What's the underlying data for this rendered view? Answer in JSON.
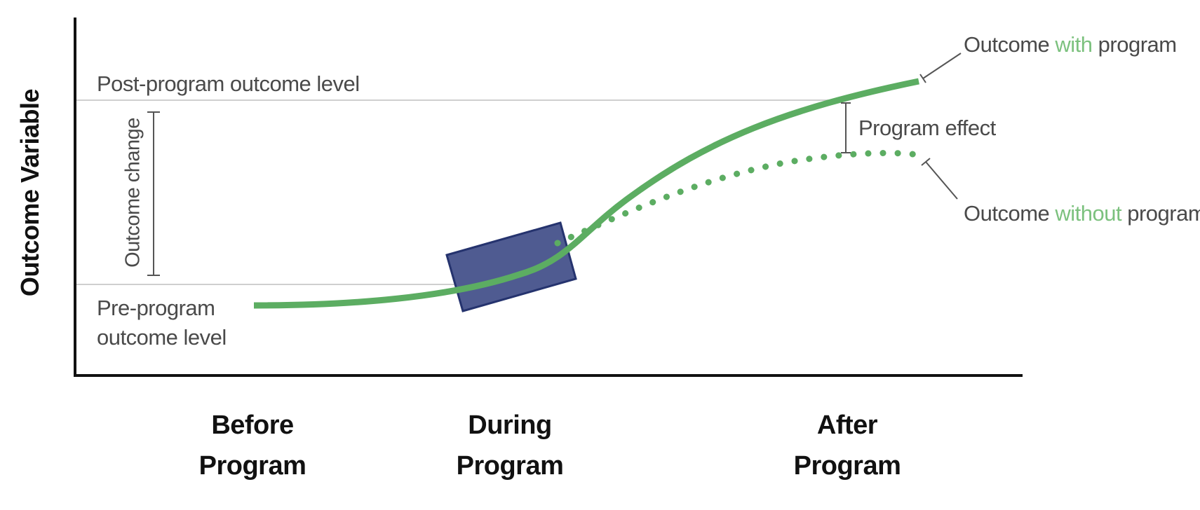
{
  "diagram": {
    "y_axis_label": "Outcome Variable",
    "x_categories": [
      {
        "line1": "Before",
        "line2": "Program"
      },
      {
        "line1": "During",
        "line2": "Program"
      },
      {
        "line1": "After",
        "line2": "Program"
      }
    ],
    "post_level_label": "Post-program outcome level",
    "pre_level_label": {
      "line1": "Pre-program",
      "line2": "outcome level"
    },
    "outcome_change_label": "Outcome change",
    "program_effect_label": "Program effect",
    "legend_with": {
      "prefix": "Outcome ",
      "key": "with",
      "suffix": " program"
    },
    "legend_without": {
      "prefix": "Outcome ",
      "key": "without",
      "suffix": " program"
    },
    "colors": {
      "curve": "#5cad62",
      "key_word": "#7cc17e",
      "program_box_fill": "#4f5b91",
      "program_box_stroke": "#25336e",
      "axis": "#111111",
      "reference_line": "#cfcfcf",
      "bracket": "#555555"
    }
  }
}
